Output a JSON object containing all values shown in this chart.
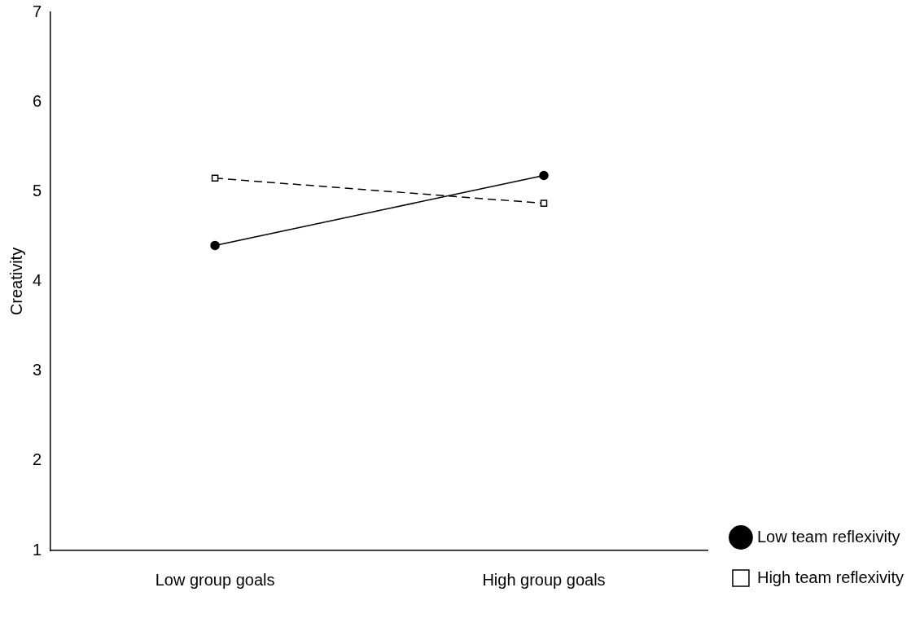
{
  "chart_data": {
    "type": "line",
    "ylabel": "Creativity",
    "categories": [
      "Low group goals",
      "High group goals"
    ],
    "ylim": [
      1,
      7
    ],
    "yticks": [
      1,
      2,
      3,
      4,
      5,
      6,
      7
    ],
    "grid": false,
    "legend": "right",
    "series": [
      {
        "name": "Low team reflexivity",
        "color": "#000000",
        "values": [
          4.4,
          5.18
        ],
        "marker": "circle",
        "line_style": "solid"
      },
      {
        "name": "High team reflexivity",
        "color": "#000000",
        "values": [
          5.15,
          4.87
        ],
        "marker": "square",
        "line_style": "dashed"
      }
    ]
  }
}
